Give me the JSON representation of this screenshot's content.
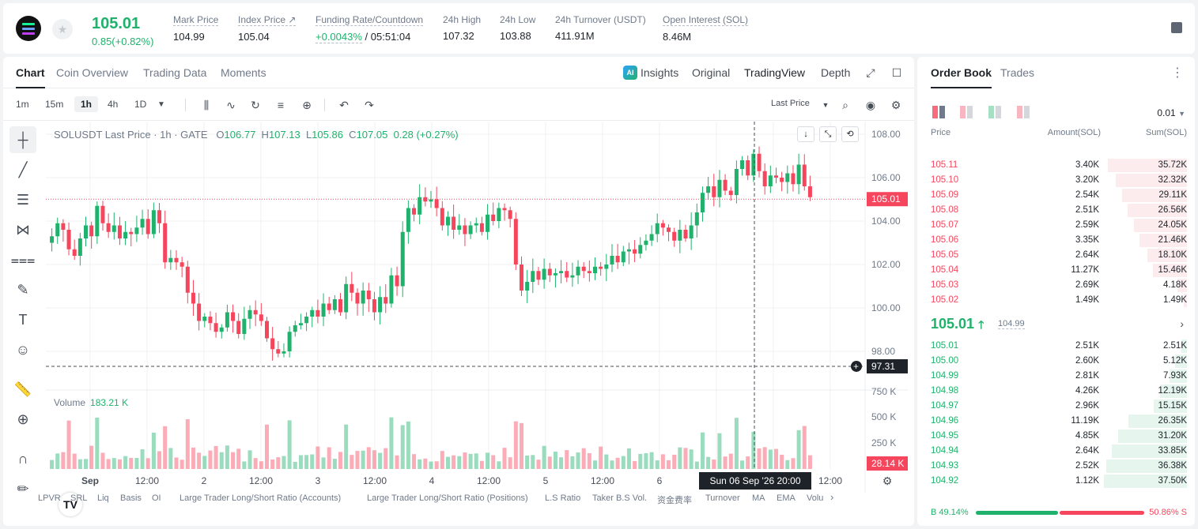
{
  "header": {
    "last_price": "105.01",
    "change": "0.85(+0.82%)",
    "stats": [
      {
        "label": "Mark Price",
        "value": "104.99"
      },
      {
        "label": "Index Price ↗",
        "value": "105.04"
      },
      {
        "label": "Funding Rate/Countdown",
        "value_green": "+0.0043%",
        "value": "/ 05:51:04"
      },
      {
        "label": "24h High",
        "value": "107.32"
      },
      {
        "label": "24h Low",
        "value": "103.88"
      },
      {
        "label": "24h Turnover (USDT)",
        "value": "411.91M"
      },
      {
        "label": "Open Interest (SOL)",
        "value": "8.46M"
      }
    ]
  },
  "chart_tabs": {
    "chart": "Chart",
    "coin_overview": "Coin Overview",
    "trading_data": "Trading Data",
    "moments": "Moments",
    "insights": "Insights",
    "original": "Original",
    "tradingview": "TradingView",
    "depth": "Depth",
    "ai_badge": "AI"
  },
  "toolbar": {
    "intervals": [
      "1m",
      "15m",
      "1h",
      "4h",
      "1D"
    ],
    "active_interval": "1h",
    "last_price_select": "Last Price"
  },
  "legend": {
    "symbol": "SOLUSDT Last Price · 1h · GATE",
    "o_key": "O",
    "o": "106.77",
    "h_key": "H",
    "h": "107.13",
    "l_key": "L",
    "l": "105.86",
    "c_key": "C",
    "c": "107.05",
    "chg": "0.28 (+0.27%)"
  },
  "volume_legend": {
    "label": "Volume",
    "value": "183.21 K"
  },
  "chart_data": {
    "type": "candlestick",
    "price_axis": {
      "ticks": [
        "108.00",
        "106.00",
        "104.00",
        "102.00",
        "100.00",
        "98.00"
      ],
      "range": [
        97.0,
        108.4
      ]
    },
    "volume_axis": {
      "ticks": [
        "750 K",
        "500 K",
        "250 K"
      ]
    },
    "time_axis": {
      "ticks": [
        "Sep",
        "12:00",
        "2",
        "12:00",
        "3",
        "12:00",
        "4",
        "12:00",
        "5",
        "12:00",
        "6",
        "12:00"
      ]
    },
    "current_price_label": "105.01",
    "crosshair_price_label": "97.31",
    "crosshair_time_label": "Sun 06 Sep '26   20:00",
    "current_volume_label": "28.14 K",
    "closes": [
      103.3,
      103.9,
      103.6,
      102.7,
      102.4,
      103.2,
      103.8,
      103.3,
      104.7,
      103.9,
      103.5,
      103.8,
      103.2,
      103.5,
      103.4,
      103.7,
      104.1,
      103.4,
      104.5,
      103.9,
      102.1,
      102.3,
      102.1,
      101.9,
      100.7,
      100.2,
      99.4,
      99.6,
      99.3,
      98.9,
      99.1,
      99.8,
      99.4,
      98.8,
      99.5,
      99.9,
      99.7,
      99.4,
      98.6,
      98.1,
      97.9,
      98.0,
      98.9,
      99.2,
      99.3,
      99.6,
      99.9,
      99.6,
      100.2,
      99.9,
      100.4,
      99.8,
      101.1,
      100.7,
      100.2,
      100.8,
      100.4,
      99.8,
      100.5,
      100.2,
      101.5,
      101.0,
      103.5,
      104.6,
      104.3,
      105.1,
      104.9,
      105.0,
      104.6,
      103.8,
      104.2,
      103.6,
      103.8,
      103.4,
      103.8,
      103.9,
      103.5,
      104.3,
      104.0,
      104.6,
      104.5,
      104.1,
      102.0,
      100.8,
      101.2,
      101.7,
      101.3,
      101.8,
      101.5,
      101.6,
      101.7,
      101.4,
      101.5,
      101.9,
      101.7,
      101.6,
      101.9,
      101.8,
      102.0,
      102.4,
      102.1,
      102.6,
      102.7,
      102.5,
      102.9,
      103.1,
      103.4,
      103.9,
      103.7,
      103.5,
      103.1,
      103.6,
      103.2,
      103.8,
      104.4,
      105.3,
      105.6,
      105.1,
      105.9,
      105.4,
      105.2,
      106.4,
      106.8,
      106.1,
      107.1,
      106.3,
      105.6,
      106.1,
      106.0,
      105.8,
      106.2,
      105.7,
      106.6,
      105.6,
      105.1
    ]
  },
  "indicators": [
    "LPVR",
    "SRL",
    "Liq",
    "Basis",
    "OI",
    "Large Trader Long/Short Ratio (Accounts)",
    "Large Trader Long/Short Ratio (Positions)",
    "L.S Ratio",
    "Taker B.S Vol.",
    "资金费率",
    "Turnover",
    "MA",
    "EMA",
    "Volu"
  ],
  "orderbook": {
    "tabs": {
      "book": "Order Book",
      "trades": "Trades"
    },
    "precision": "0.01",
    "headers": {
      "price": "Price",
      "amount": "Amount(SOL)",
      "sum": "Sum(SOL)"
    },
    "asks": [
      {
        "price": "105.11",
        "amount": "3.40K",
        "sum": "35.72K",
        "fill": 0.95
      },
      {
        "price": "105.10",
        "amount": "3.20K",
        "sum": "32.32K",
        "fill": 0.86
      },
      {
        "price": "105.09",
        "amount": "2.54K",
        "sum": "29.11K",
        "fill": 0.78
      },
      {
        "price": "105.08",
        "amount": "2.51K",
        "sum": "26.56K",
        "fill": 0.71
      },
      {
        "price": "105.07",
        "amount": "2.59K",
        "sum": "24.05K",
        "fill": 0.64
      },
      {
        "price": "105.06",
        "amount": "3.35K",
        "sum": "21.46K",
        "fill": 0.57
      },
      {
        "price": "105.05",
        "amount": "2.64K",
        "sum": "18.10K",
        "fill": 0.48
      },
      {
        "price": "105.04",
        "amount": "11.27K",
        "sum": "15.46K",
        "fill": 0.41
      },
      {
        "price": "105.03",
        "amount": "2.69K",
        "sum": "4.18K",
        "fill": 0.11
      },
      {
        "price": "105.02",
        "amount": "1.49K",
        "sum": "1.49K",
        "fill": 0.04
      }
    ],
    "mid": {
      "price": "105.01",
      "arrow": "🡑",
      "mark": "104.99",
      "chevron": "›"
    },
    "bids": [
      {
        "price": "105.01",
        "amount": "2.51K",
        "sum": "2.51K",
        "fill": 0.07
      },
      {
        "price": "105.00",
        "amount": "2.60K",
        "sum": "5.12K",
        "fill": 0.14
      },
      {
        "price": "104.99",
        "amount": "2.81K",
        "sum": "7.93K",
        "fill": 0.21
      },
      {
        "price": "104.98",
        "amount": "4.26K",
        "sum": "12.19K",
        "fill": 0.32
      },
      {
        "price": "104.97",
        "amount": "2.96K",
        "sum": "15.15K",
        "fill": 0.4
      },
      {
        "price": "104.96",
        "amount": "11.19K",
        "sum": "26.35K",
        "fill": 0.7
      },
      {
        "price": "104.95",
        "amount": "4.85K",
        "sum": "31.20K",
        "fill": 0.83
      },
      {
        "price": "104.94",
        "amount": "2.64K",
        "sum": "33.85K",
        "fill": 0.9
      },
      {
        "price": "104.93",
        "amount": "2.52K",
        "sum": "36.38K",
        "fill": 0.97
      },
      {
        "price": "104.92",
        "amount": "1.12K",
        "sum": "37.50K",
        "fill": 1.0
      }
    ],
    "buy_ratio": "B 49.14%",
    "sell_ratio": "50.86% S",
    "buy_fraction": 0.4914
  },
  "colors": {
    "up": "#20b26c",
    "down": "#f6465d",
    "grid": "#f0f1f3",
    "axis_text": "#707a8a"
  }
}
